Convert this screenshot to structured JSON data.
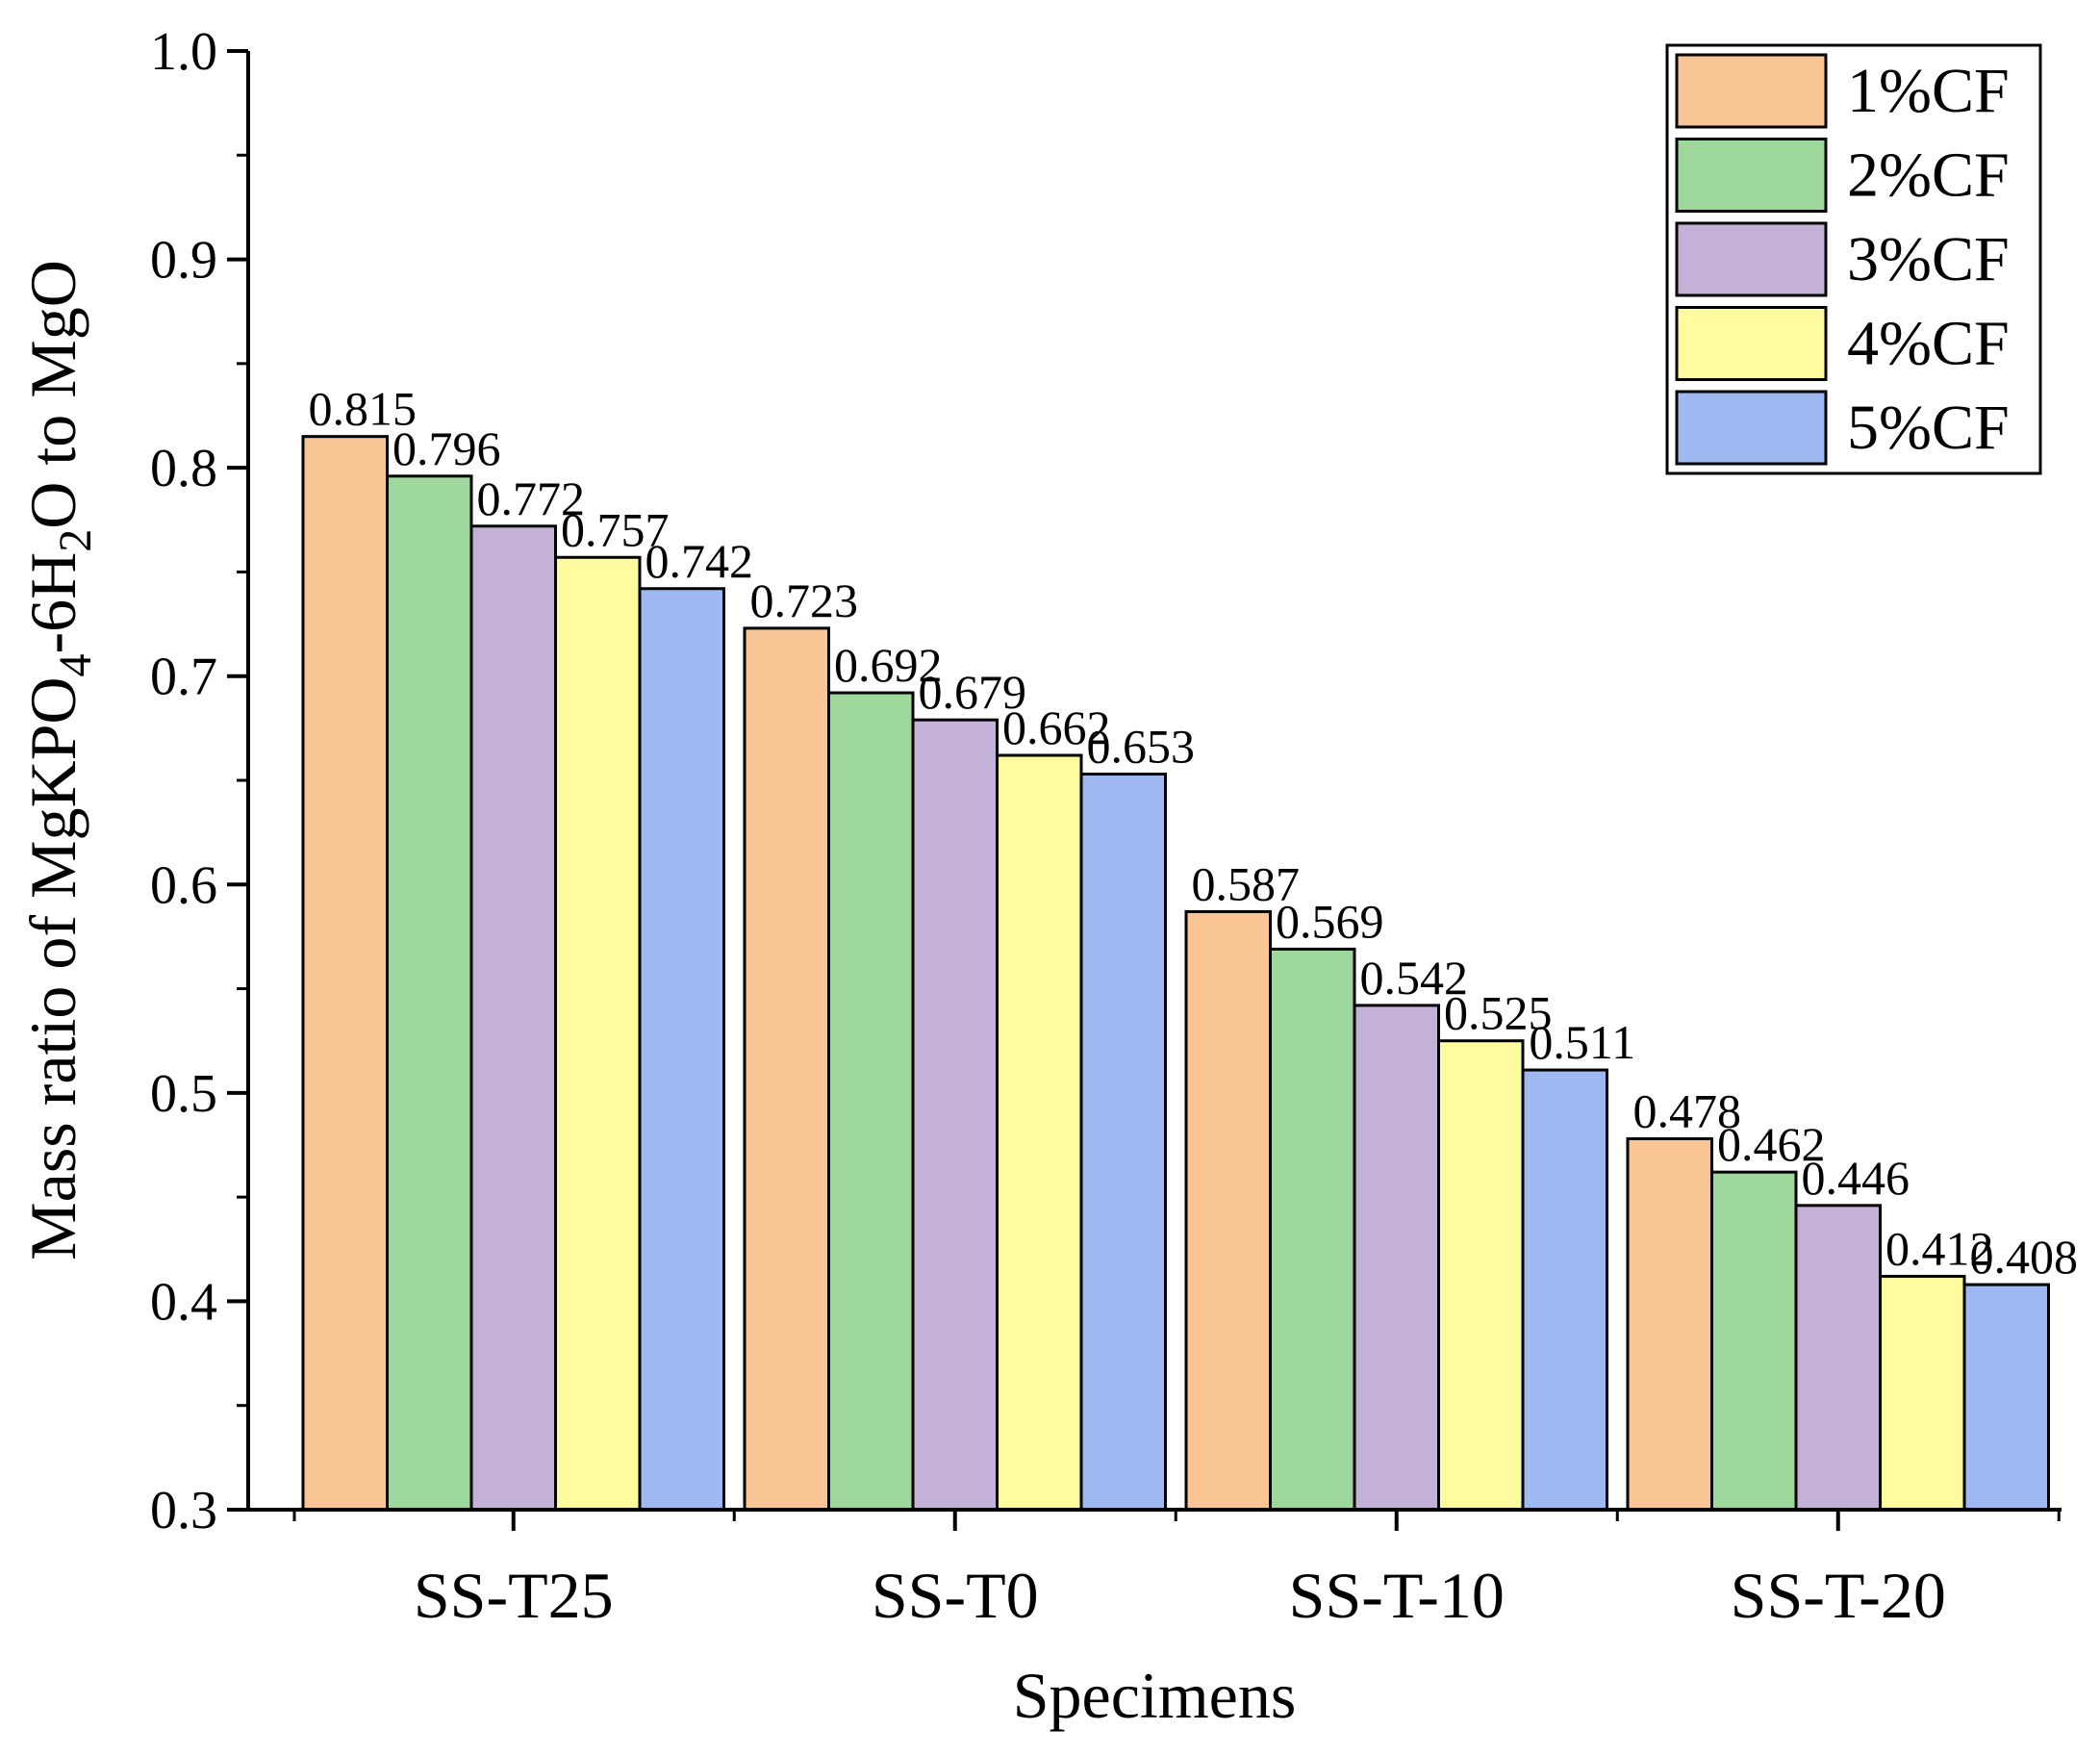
{
  "chart_data": {
    "type": "bar",
    "title": "",
    "xlabel": "Specimens",
    "ylabel_parts": {
      "prefix": "Mass ratio of MgKPO",
      "sub1": "4",
      "mid": "-6H",
      "sub2": "2",
      "suffix": "O to MgO"
    },
    "ylim": [
      0.3,
      1.0
    ],
    "yticks": [
      "0.3",
      "0.4",
      "0.5",
      "0.6",
      "0.7",
      "0.8",
      "0.9",
      "1.0"
    ],
    "categories": [
      "SS-T25",
      "SS-T0",
      "SS-T-10",
      "SS-T-20"
    ],
    "series": [
      {
        "name": "1%CF",
        "color": "#F9C595",
        "values": [
          0.815,
          0.723,
          0.587,
          0.478
        ]
      },
      {
        "name": "2%CF",
        "color": "#9ED89C",
        "values": [
          0.796,
          0.692,
          0.569,
          0.462
        ]
      },
      {
        "name": "3%CF",
        "color": "#C3B1D7",
        "values": [
          0.772,
          0.679,
          0.542,
          0.446
        ]
      },
      {
        "name": "4%CF",
        "color": "#FEFC9E",
        "values": [
          0.757,
          0.662,
          0.525,
          0.412
        ]
      },
      {
        "name": "5%CF",
        "color": "#9EB9F1",
        "values": [
          0.742,
          0.653,
          0.511,
          0.408
        ]
      }
    ],
    "legend_position": "top-right",
    "grid": false
  }
}
